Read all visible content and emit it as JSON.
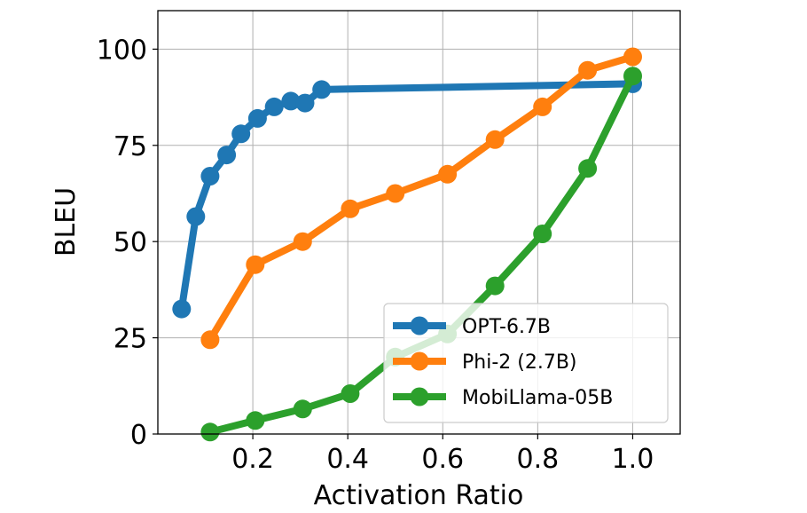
{
  "chart_data": {
    "type": "line",
    "title": "",
    "xlabel": "Activation Ratio",
    "ylabel": "BLEU",
    "xlim": [
      0.0,
      1.1
    ],
    "ylim": [
      0,
      110
    ],
    "x_ticks": [
      "0.2",
      "0.4",
      "0.6",
      "0.8",
      "1.0"
    ],
    "y_ticks": [
      "0",
      "25",
      "50",
      "75",
      "100"
    ],
    "grid": true,
    "legend_position": "lower-right",
    "series": [
      {
        "name": "OPT-6.7B",
        "color": "#1f77b4",
        "x": [
          0.05,
          0.08,
          0.11,
          0.145,
          0.175,
          0.21,
          0.245,
          0.28,
          0.31,
          0.345,
          1.0
        ],
        "y": [
          32.5,
          56.5,
          67,
          72.5,
          78,
          82,
          85,
          86.5,
          86,
          89.5,
          91
        ]
      },
      {
        "name": "Phi-2 (2.7B)",
        "color": "#ff7f0e",
        "x": [
          0.11,
          0.205,
          0.305,
          0.405,
          0.5,
          0.61,
          0.71,
          0.81,
          0.905,
          1.0
        ],
        "y": [
          24.5,
          44,
          50,
          58.5,
          62.5,
          67.5,
          76.5,
          85,
          94.5,
          98
        ]
      },
      {
        "name": "MobiLlama-05B",
        "color": "#2ca02c",
        "x": [
          0.11,
          0.205,
          0.305,
          0.405,
          0.5,
          0.61,
          0.71,
          0.81,
          0.905,
          1.0
        ],
        "y": [
          0.5,
          3.5,
          6.5,
          10.5,
          20,
          26,
          38.5,
          52,
          69,
          93
        ]
      }
    ]
  }
}
